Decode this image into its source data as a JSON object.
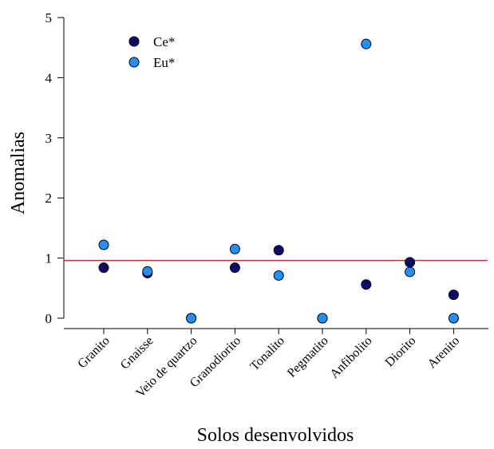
{
  "chart_data": {
    "type": "scatter",
    "xlabel": "Solos desenvolvidos",
    "ylabel": "Anomalias",
    "categories": [
      "Granito",
      "Gnaisse",
      "Veio de quartzo",
      "Granodiorito",
      "Tonalito",
      "Pegmatito",
      "Anfibolito",
      "Diorito",
      "Arenito"
    ],
    "ylim": [
      0,
      5
    ],
    "yticks": [
      "0",
      "1",
      "2",
      "3",
      "4",
      "5"
    ],
    "series": [
      {
        "name": "Ce*",
        "color": "#0a0a6e",
        "values": [
          0.84,
          0.75,
          0.0,
          0.84,
          1.13,
          0.0,
          0.56,
          0.93,
          0.39
        ]
      },
      {
        "name": "Eu*",
        "color": "#1e90ff",
        "values": [
          1.22,
          0.78,
          0.0,
          1.15,
          0.71,
          0.0,
          4.56,
          0.77,
          0.0
        ]
      }
    ],
    "reference_line": {
      "y": 0.96,
      "color": "#e8231e"
    },
    "legend_position": "top-left",
    "grid": false
  }
}
